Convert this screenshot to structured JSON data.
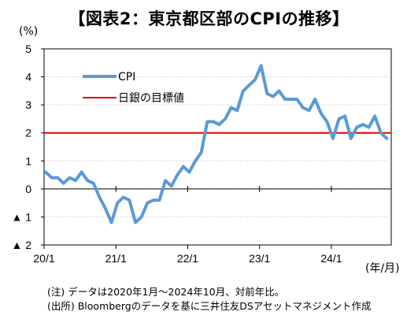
{
  "title": "【図表2：東京都区部のCPIの推移】",
  "y_unit": "(%)",
  "x_unit": "(年/月)",
  "notes": [
    "(注) データは2020年1月～2024年10月、対前年比。",
    "(出所) Bloombergのデータを基に三井住友DSアセットマネジメント作成"
  ],
  "colors": {
    "cpi": "#5b9bd5",
    "target": "#e00000",
    "grid": "#bfbfbf"
  },
  "chart_data": {
    "type": "line",
    "title": "【図表2：東京都区部のCPIの推移】",
    "xlabel": "(年/月)",
    "ylabel": "(%)",
    "ylim": [
      -2,
      5
    ],
    "yticks": [
      5,
      4,
      3,
      2,
      1,
      0,
      -1,
      -2
    ],
    "ytick_labels": [
      "5",
      "4",
      "3",
      "2",
      "1",
      "0",
      "▲ 1",
      "▲ 2"
    ],
    "xtick_labels": [
      "20/1",
      "21/1",
      "22/1",
      "23/1",
      "24/1"
    ],
    "xtick_index": [
      0,
      12,
      24,
      36,
      48
    ],
    "grid": "horizontal dotted",
    "legend_position": "top-left inside",
    "series": [
      {
        "name": "CPI",
        "x_start": "2020-01",
        "x_end": "2024-10",
        "values": [
          0.6,
          0.4,
          0.4,
          0.2,
          0.4,
          0.3,
          0.6,
          0.3,
          0.2,
          -0.3,
          -0.7,
          -1.2,
          -0.5,
          -0.3,
          -0.4,
          -1.2,
          -1.0,
          -0.5,
          -0.4,
          -0.4,
          0.3,
          0.1,
          0.5,
          0.8,
          0.6,
          1.0,
          1.3,
          2.4,
          2.4,
          2.3,
          2.5,
          2.9,
          2.8,
          3.5,
          3.7,
          3.9,
          4.4,
          3.4,
          3.3,
          3.5,
          3.2,
          3.2,
          3.2,
          2.9,
          2.8,
          3.2,
          2.7,
          2.4,
          1.8,
          2.5,
          2.6,
          1.8,
          2.2,
          2.3,
          2.2,
          2.6,
          2.0,
          1.8
        ]
      },
      {
        "name": "日銀の目標値",
        "values": [
          2,
          2
        ]
      }
    ]
  }
}
